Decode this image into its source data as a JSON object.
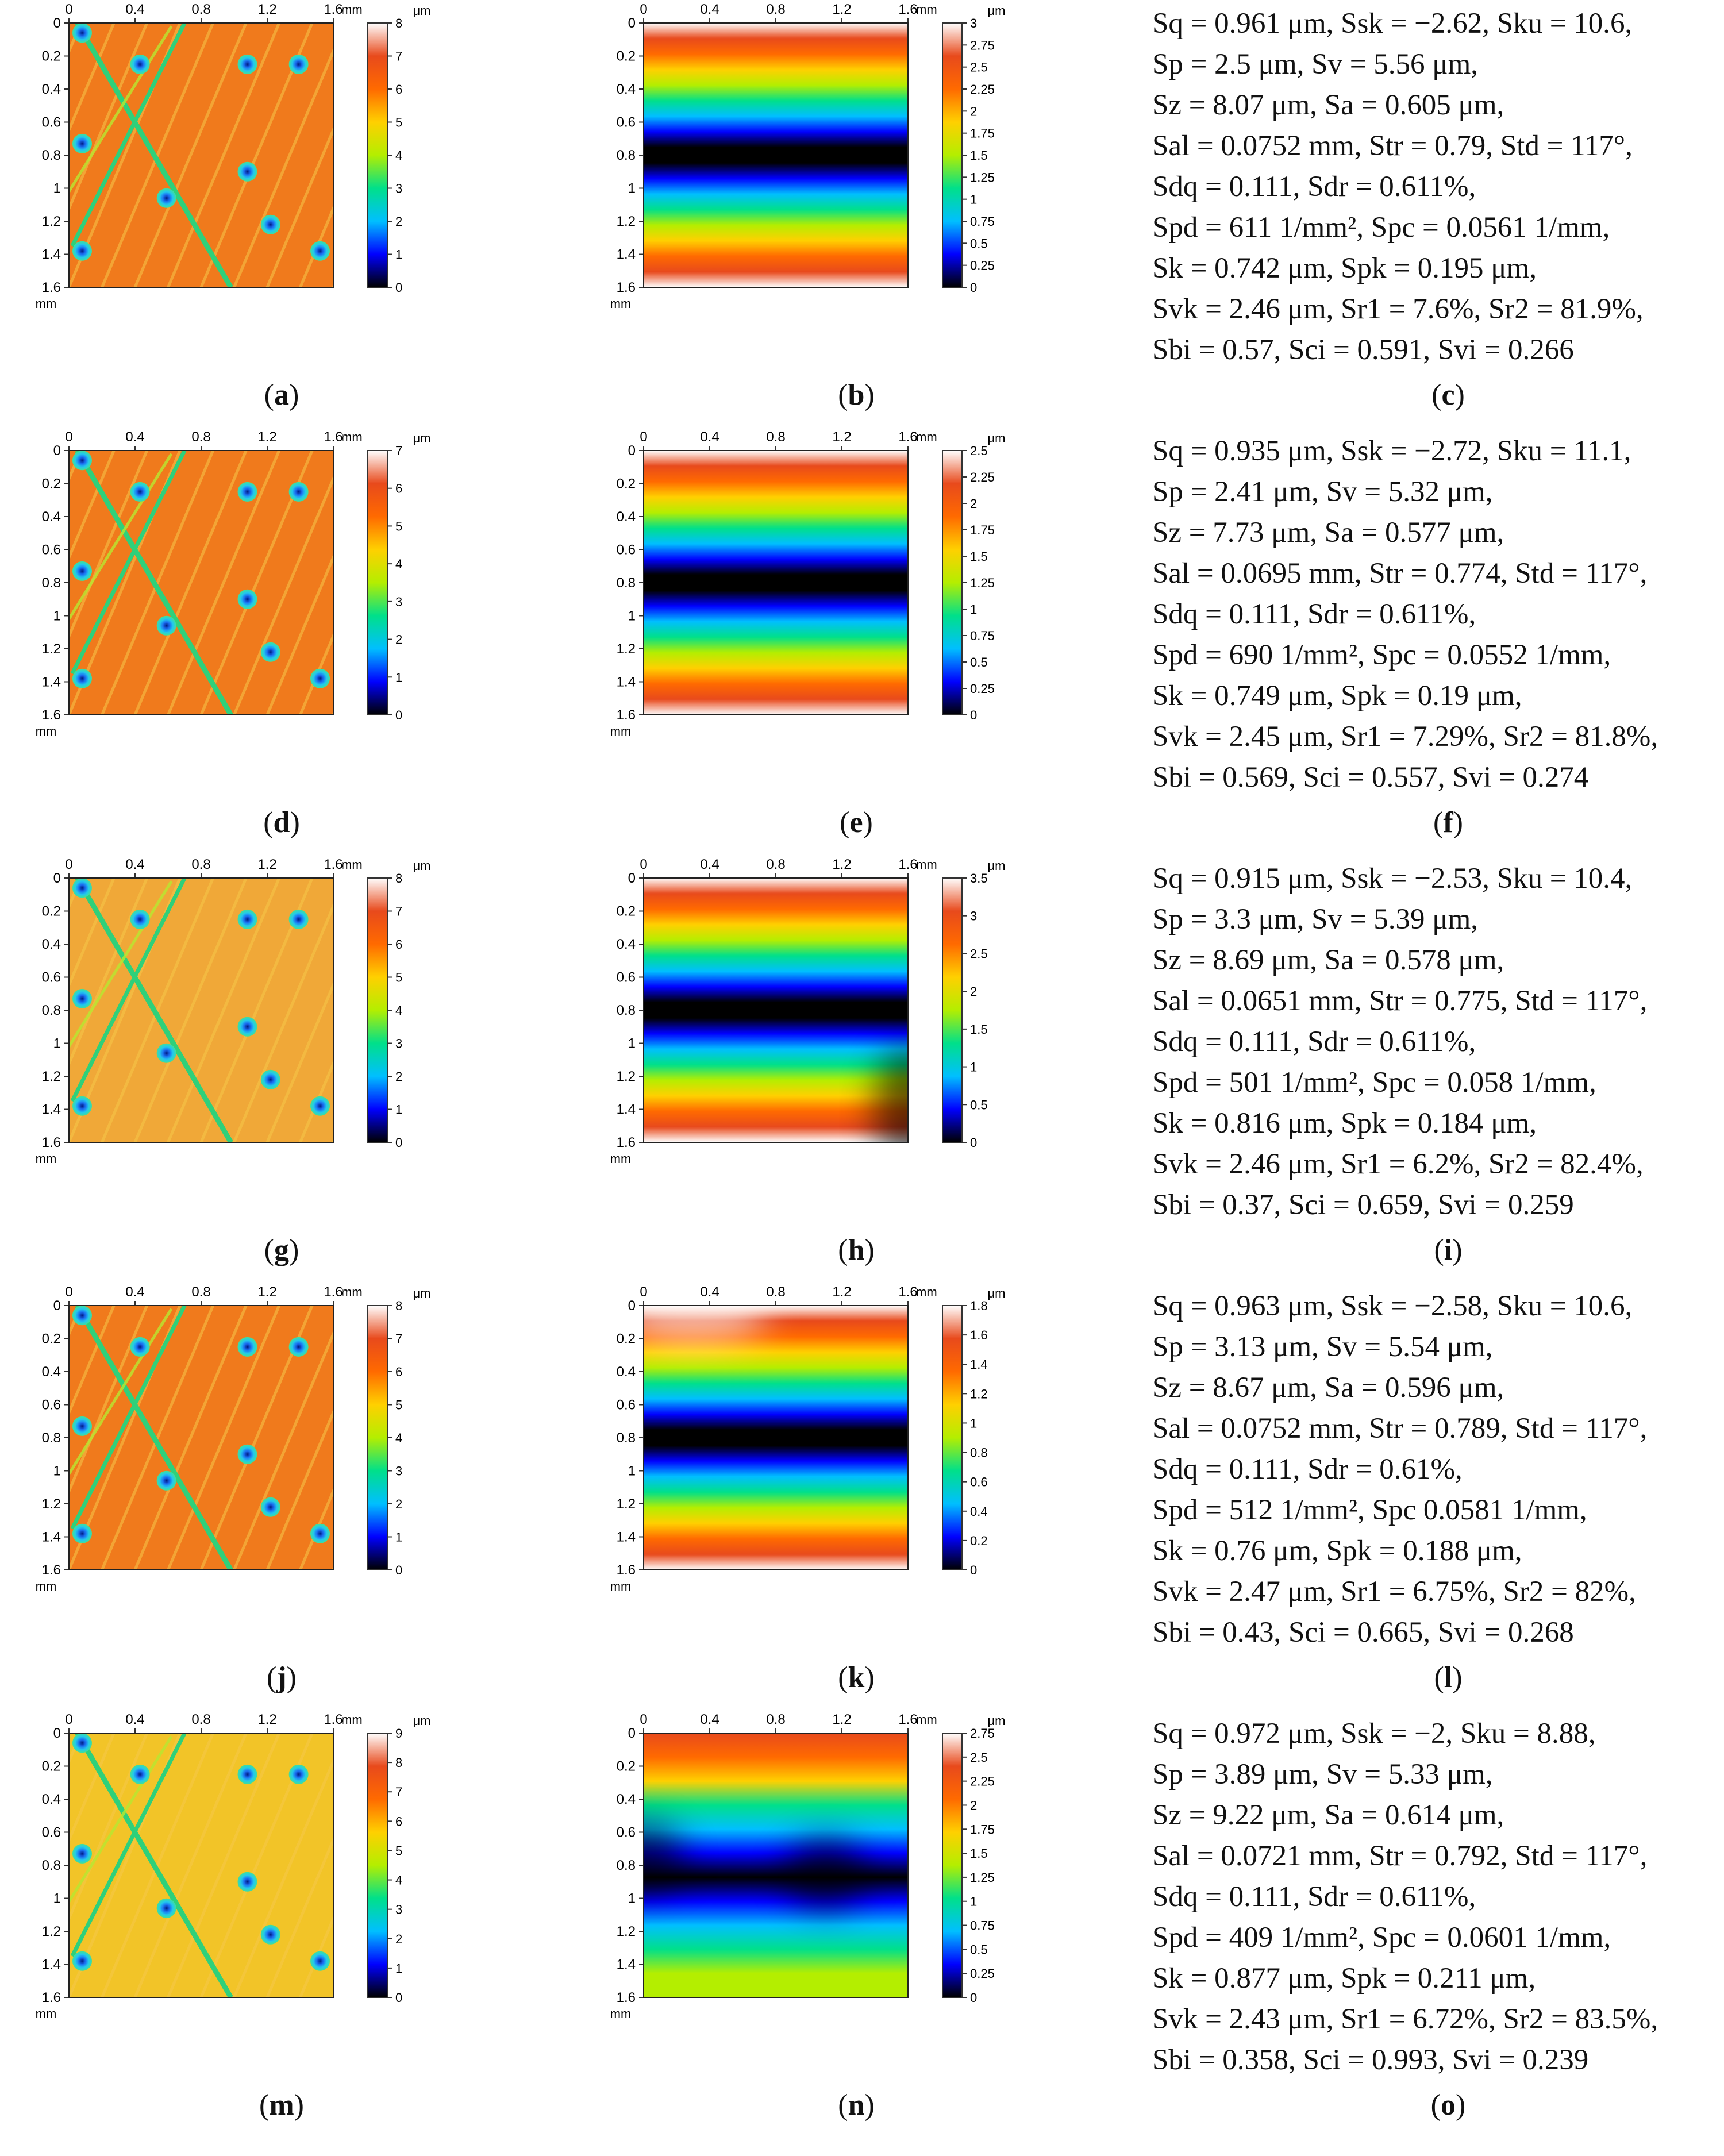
{
  "common": {
    "x_ticks": [
      "0",
      "0.4",
      "0.8",
      "1.2",
      "1.6"
    ],
    "y_ticks": [
      "0",
      "0.2",
      "0.4",
      "0.6",
      "0.8",
      "1",
      "1.2",
      "1.4",
      "1.6"
    ],
    "x_unit": "mm",
    "y_unit": "mm",
    "z_unit": "μm"
  },
  "rows": [
    {
      "captions": [
        "a",
        "b",
        "c"
      ],
      "topo_scale": [
        "0",
        "1",
        "2",
        "3",
        "4",
        "5",
        "6",
        "7",
        "8"
      ],
      "form_scale": [
        "0",
        "0.25",
        "0.5",
        "0.75",
        "1",
        "1.25",
        "1.5",
        "1.75",
        "2",
        "2.25",
        "2.5",
        "2.75",
        "3"
      ],
      "params": [
        "Sq = 0.961 μm, Ssk = −2.62, Sku = 10.6,",
        "Sp = 2.5 μm, Sv = 5.56 μm,",
        "Sz = 8.07 μm, Sa = 0.605 μm,",
        "Sal = 0.0752 mm, Str = 0.79, Std = 117°,",
        "Sdq = 0.111, Sdr = 0.611%,",
        "Spd = 611 1/mm², Spc = 0.0561 1/mm,",
        "Sk = 0.742 μm, Spk = 0.195 μm,",
        "Svk = 2.46 μm, Sr1 = 7.6%, Sr2 = 81.9%,",
        "Sbi = 0.57, Sci = 0.591, Svi = 0.266"
      ]
    },
    {
      "captions": [
        "d",
        "e",
        "f"
      ],
      "topo_scale": [
        "0",
        "1",
        "2",
        "3",
        "4",
        "5",
        "6",
        "7"
      ],
      "form_scale": [
        "0",
        "0.25",
        "0.5",
        "0.75",
        "1",
        "1.25",
        "1.5",
        "1.75",
        "2",
        "2.25",
        "2.5"
      ],
      "params": [
        "Sq = 0.935 μm, Ssk = −2.72, Sku = 11.1,",
        "Sp = 2.41 μm, Sv = 5.32 μm,",
        "Sz = 7.73 μm, Sa = 0.577 μm,",
        "Sal = 0.0695 mm, Str = 0.774, Std = 117°,",
        "Sdq = 0.111, Sdr = 0.611%,",
        "Spd = 690 1/mm², Spc = 0.0552 1/mm,",
        "Sk = 0.749 μm, Spk = 0.19 μm,",
        "Svk = 2.45 μm, Sr1 = 7.29%, Sr2 = 81.8%,",
        "Sbi = 0.569, Sci = 0.557, Svi = 0.274"
      ]
    },
    {
      "captions": [
        "g",
        "h",
        "i"
      ],
      "topo_scale": [
        "0",
        "1",
        "2",
        "3",
        "4",
        "5",
        "6",
        "7",
        "8"
      ],
      "form_scale": [
        "0",
        "0.5",
        "1",
        "1.5",
        "2",
        "2.5",
        "3",
        "3.5"
      ],
      "params": [
        "Sq = 0.915 μm, Ssk = −2.53, Sku = 10.4,",
        "Sp = 3.3 μm, Sv = 5.39 μm,",
        "Sz = 8.69 μm, Sa = 0.578 μm,",
        "Sal = 0.0651 mm, Str = 0.775, Std = 117°,",
        "Sdq = 0.111, Sdr = 0.611%,",
        "Spd = 501 1/mm², Spc = 0.058 1/mm,",
        "Sk = 0.816 μm, Spk = 0.184 μm,",
        "Svk = 2.46 μm, Sr1 = 6.2%, Sr2 = 82.4%,",
        "Sbi = 0.37, Sci = 0.659, Svi = 0.259"
      ]
    },
    {
      "captions": [
        "j",
        "k",
        "l"
      ],
      "topo_scale": [
        "0",
        "1",
        "2",
        "3",
        "4",
        "5",
        "6",
        "7",
        "8"
      ],
      "form_scale": [
        "0",
        "0.2",
        "0.4",
        "0.6",
        "0.8",
        "1",
        "1.2",
        "1.4",
        "1.6",
        "1.8"
      ],
      "params": [
        "Sq = 0.963 μm, Ssk = −2.58, Sku = 10.6,",
        "Sp = 3.13 μm, Sv = 5.54 μm,",
        "Sz = 8.67 μm, Sa = 0.596 μm,",
        "Sal = 0.0752 mm, Str = 0.789, Std = 117°,",
        "Sdq = 0.111, Sdr = 0.61%,",
        "Spd = 512 1/mm², Spc 0.0581 1/mm,",
        "Sk = 0.76 μm, Spk = 0.188 μm,",
        "Svk = 2.47 μm, Sr1 = 6.75%, Sr2 = 82%,",
        "Sbi = 0.43, Sci = 0.665, Svi = 0.268"
      ]
    },
    {
      "captions": [
        "m",
        "n",
        "o"
      ],
      "topo_scale": [
        "0",
        "1",
        "2",
        "3",
        "4",
        "5",
        "6",
        "7",
        "8",
        "9"
      ],
      "form_scale": [
        "0",
        "0.25",
        "0.5",
        "0.75",
        "1",
        "1.25",
        "1.5",
        "1.75",
        "2",
        "2.25",
        "2.5",
        "2.75"
      ],
      "params": [
        "Sq = 0.972 μm, Ssk = −2, Sku = 8.88,",
        "Sp = 3.89 μm, Sv = 5.33 μm,",
        "Sz = 9.22 μm, Sa = 0.614 μm,",
        "Sal = 0.0721 mm, Str = 0.792, Std = 117°,",
        "Sdq = 0.111, Sdr = 0.611%,",
        "Spd = 409 1/mm², Spc = 0.0601 1/mm,",
        "Sk = 0.877 μm, Spk = 0.211 μm,",
        "Svk = 2.43 μm, Sr1 = 6.72%, Sr2 = 83.5%,",
        "Sbi = 0.358, Sci = 0.993, Svi = 0.239"
      ]
    }
  ],
  "colors": {
    "rainbow": [
      "#000000",
      "#0000ff",
      "#00bfff",
      "#00e08a",
      "#b4ee00",
      "#ffd000",
      "#ff6a00",
      "#e84a1c",
      "#ffffff"
    ],
    "topo_base": "#f07a1c",
    "topo_base_light": "#f2c428",
    "dimple": "#1560e8",
    "scratch": "#2fd07a"
  }
}
